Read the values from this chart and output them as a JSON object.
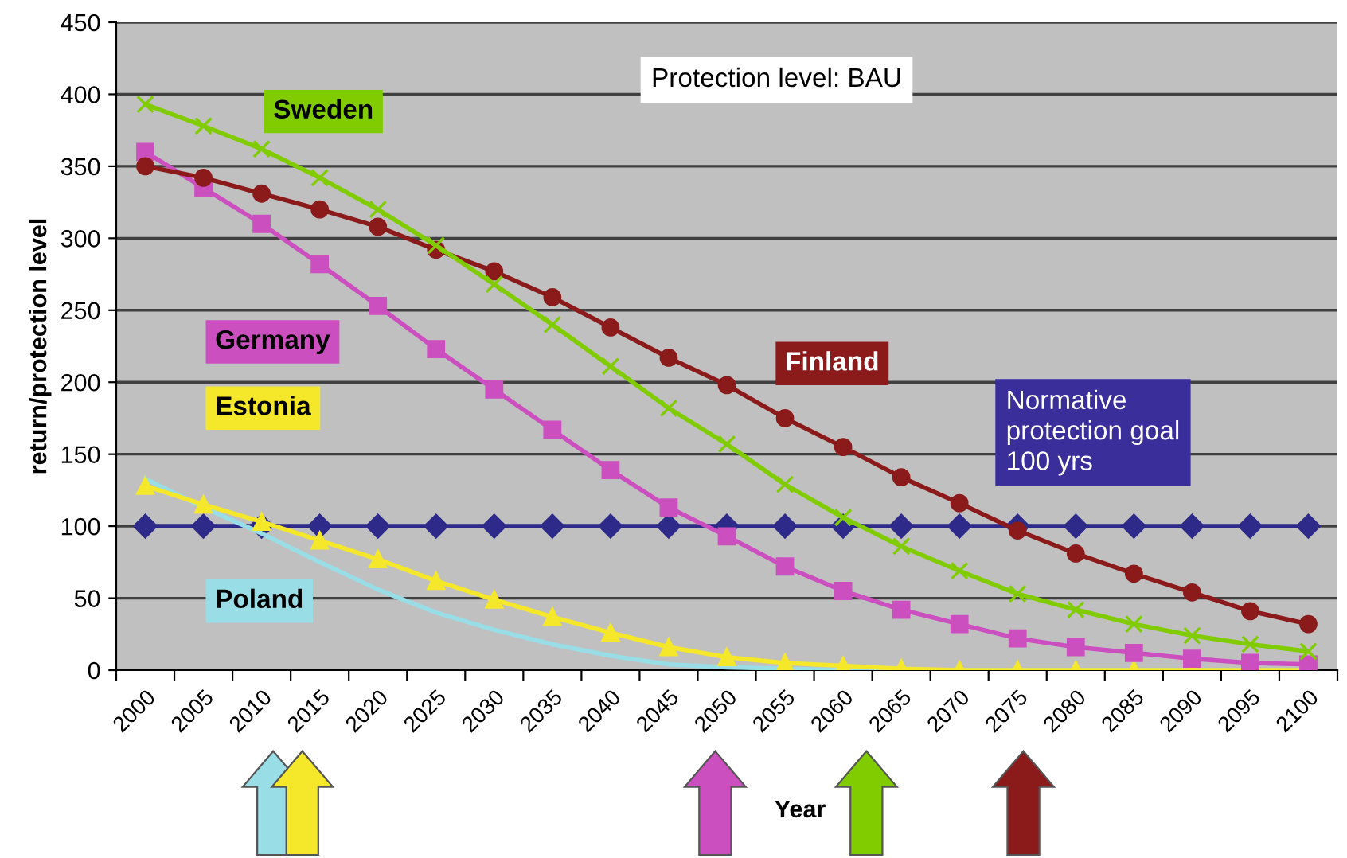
{
  "chart_data": {
    "type": "line",
    "title": "Protection level: BAU",
    "xlabel": "Year",
    "ylabel": "return/protection level",
    "categories": [
      "2000",
      "2005",
      "2010",
      "2015",
      "2020",
      "2025",
      "2030",
      "2035",
      "2040",
      "2045",
      "2050",
      "2055",
      "2060",
      "2065",
      "2070",
      "2075",
      "2080",
      "2085",
      "2090",
      "2095",
      "2100"
    ],
    "series": [
      {
        "name": "Sweden",
        "color": "#80cc00",
        "marker": "cross",
        "values": [
          393,
          378,
          362,
          342,
          320,
          295,
          268,
          240,
          211,
          182,
          157,
          129,
          106,
          86,
          69,
          53,
          42,
          32,
          24,
          18,
          13
        ]
      },
      {
        "name": "Finland",
        "color": "#8b1a1a",
        "marker": "circle",
        "values": [
          350,
          342,
          331,
          320,
          308,
          292,
          277,
          259,
          238,
          217,
          198,
          175,
          155,
          134,
          116,
          97,
          81,
          67,
          54,
          41,
          32
        ]
      },
      {
        "name": "Germany",
        "color": "#cc4fbf",
        "marker": "square",
        "values": [
          360,
          335,
          310,
          282,
          253,
          223,
          195,
          167,
          139,
          113,
          93,
          72,
          55,
          42,
          32,
          22,
          16,
          12,
          8,
          5,
          4
        ]
      },
      {
        "name": "Estonia",
        "color": "#f5e82a",
        "marker": "triangle",
        "values": [
          128,
          115,
          103,
          90,
          77,
          62,
          49,
          37,
          26,
          16,
          9,
          5,
          3,
          1,
          0,
          0,
          0,
          0,
          0,
          0,
          0
        ]
      },
      {
        "name": "Poland",
        "color": "#99dde6",
        "marker": "none",
        "values": [
          133,
          113,
          95,
          75,
          56,
          40,
          28,
          18,
          10,
          4,
          2,
          1,
          0,
          0,
          0,
          0,
          0,
          0,
          0,
          0,
          0
        ]
      },
      {
        "name": "Normative protection goal 100 yrs",
        "color": "#2e2a8a",
        "marker": "diamond",
        "values": [
          100,
          100,
          100,
          100,
          100,
          100,
          100,
          100,
          100,
          100,
          100,
          100,
          100,
          100,
          100,
          100,
          100,
          100,
          100,
          100,
          100
        ]
      }
    ],
    "ylim": [
      0,
      450
    ],
    "yticks": [
      0,
      50,
      100,
      150,
      200,
      250,
      300,
      350,
      400,
      450
    ],
    "grid": "y",
    "legend": false
  }
}
